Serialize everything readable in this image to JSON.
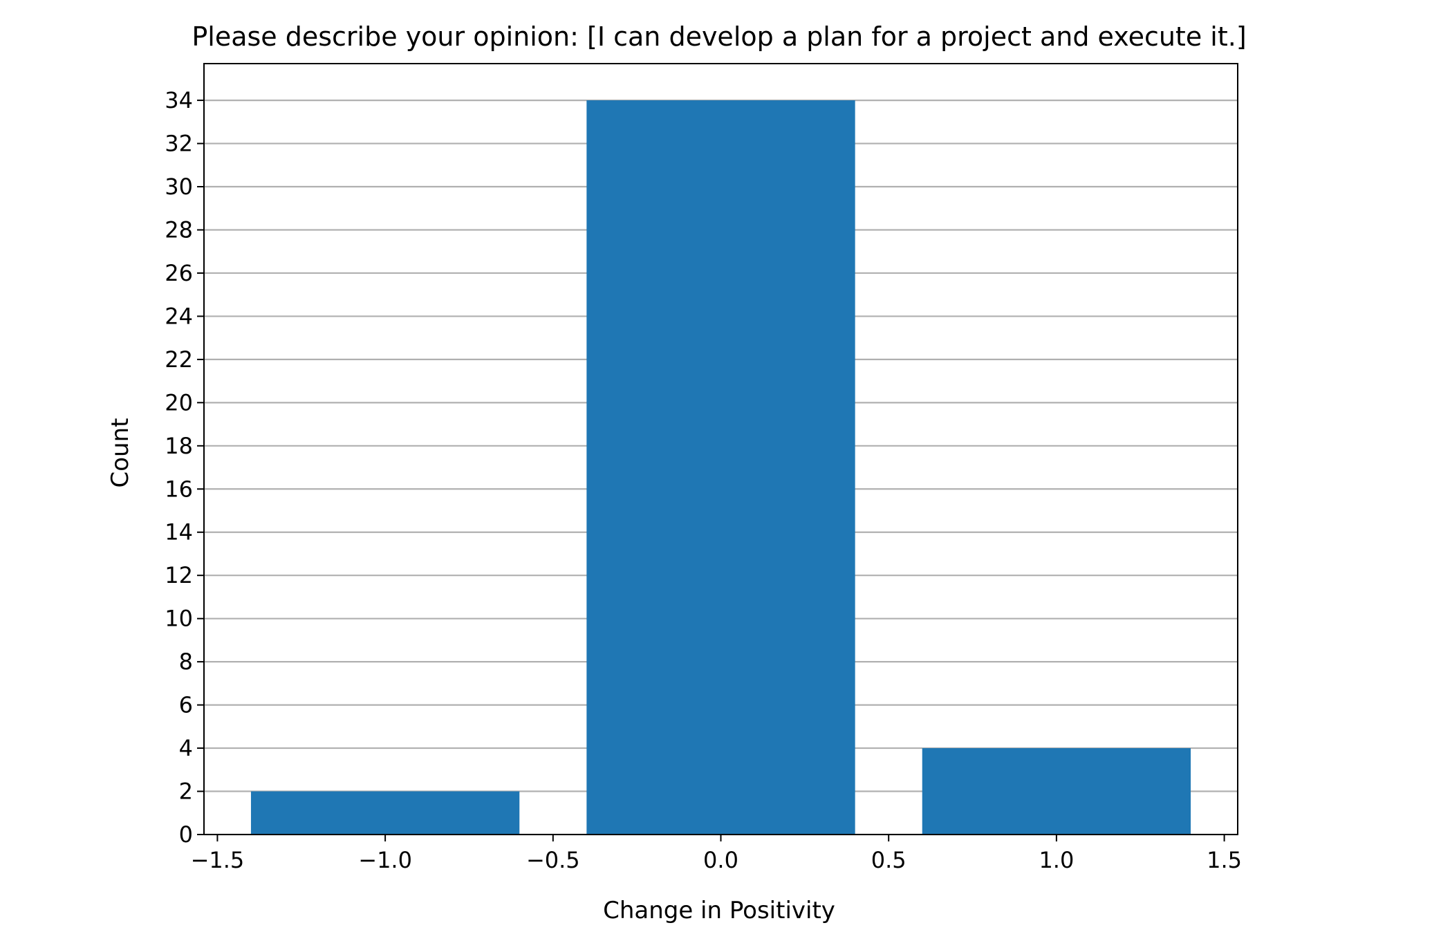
{
  "chart_data": {
    "type": "bar",
    "title": "Please describe your opinion: [I can develop a plan for a project and execute it.]",
    "xlabel": "Change in Positivity",
    "ylabel": "Count",
    "x": [
      -1.0,
      0.0,
      1.0
    ],
    "values": [
      2,
      34,
      4
    ],
    "bar_width": 0.8,
    "xlim": [
      -1.54,
      1.54
    ],
    "ylim": [
      0,
      35.7
    ],
    "xticks": [
      -1.5,
      -1.0,
      -0.5,
      0.0,
      0.5,
      1.0,
      1.5
    ],
    "xtick_labels": [
      "−1.5",
      "−1.0",
      "−0.5",
      "0.0",
      "0.5",
      "1.0",
      "1.5"
    ],
    "yticks": [
      0,
      2,
      4,
      6,
      8,
      10,
      12,
      14,
      16,
      18,
      20,
      22,
      24,
      26,
      28,
      30,
      32,
      34
    ],
    "grid": "y",
    "bar_color": "#1f77b4",
    "grid_color": "#b0b0b0"
  }
}
